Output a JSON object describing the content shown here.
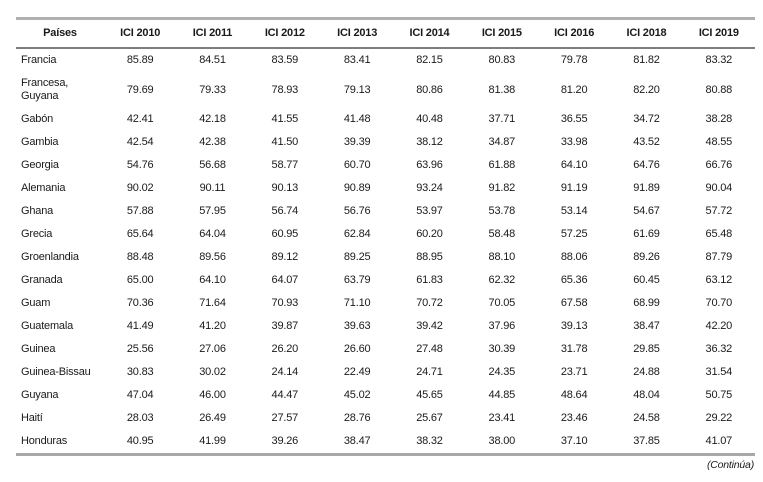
{
  "table": {
    "columns": [
      "Países",
      "ICI 2010",
      "ICI 2011",
      "ICI 2012",
      "ICI 2013",
      "ICI 2014",
      "ICI 2015",
      "ICI 2016",
      "ICI 2018",
      "ICI 2019"
    ],
    "rows": [
      {
        "name": "Francia",
        "values": [
          "85.89",
          "84.51",
          "83.59",
          "83.41",
          "82.15",
          "80.83",
          "79.78",
          "81.82",
          "83.32"
        ]
      },
      {
        "name": "Francesa, Guyana",
        "values": [
          "79.69",
          "79.33",
          "78.93",
          "79.13",
          "80.86",
          "81.38",
          "81.20",
          "82.20",
          "80.88"
        ]
      },
      {
        "name": "Gabón",
        "values": [
          "42.41",
          "42.18",
          "41.55",
          "41.48",
          "40.48",
          "37.71",
          "36.55",
          "34.72",
          "38.28"
        ]
      },
      {
        "name": "Gambia",
        "values": [
          "42.54",
          "42.38",
          "41.50",
          "39.39",
          "38.12",
          "34.87",
          "33.98",
          "43.52",
          "48.55"
        ]
      },
      {
        "name": "Georgia",
        "values": [
          "54.76",
          "56.68",
          "58.77",
          "60.70",
          "63.96",
          "61.88",
          "64.10",
          "64.76",
          "66.76"
        ]
      },
      {
        "name": "Alemania",
        "values": [
          "90.02",
          "90.11",
          "90.13",
          "90.89",
          "93.24",
          "91.82",
          "91.19",
          "91.89",
          "90.04"
        ]
      },
      {
        "name": "Ghana",
        "values": [
          "57.88",
          "57.95",
          "56.74",
          "56.76",
          "53.97",
          "53.78",
          "53.14",
          "54.67",
          "57.72"
        ]
      },
      {
        "name": "Grecia",
        "values": [
          "65.64",
          "64.04",
          "60.95",
          "62.84",
          "60.20",
          "58.48",
          "57.25",
          "61.69",
          "65.48"
        ]
      },
      {
        "name": "Groenlandia",
        "values": [
          "88.48",
          "89.56",
          "89.12",
          "89.25",
          "88.95",
          "88.10",
          "88.06",
          "89.26",
          "87.79"
        ]
      },
      {
        "name": "Granada",
        "values": [
          "65.00",
          "64.10",
          "64.07",
          "63.79",
          "61.83",
          "62.32",
          "65.36",
          "60.45",
          "63.12"
        ]
      },
      {
        "name": "Guam",
        "values": [
          "70.36",
          "71.64",
          "70.93",
          "71.10",
          "70.72",
          "70.05",
          "67.58",
          "68.99",
          "70.70"
        ]
      },
      {
        "name": "Guatemala",
        "values": [
          "41.49",
          "41.20",
          "39.87",
          "39.63",
          "39.42",
          "37.96",
          "39.13",
          "38.47",
          "42.20"
        ]
      },
      {
        "name": "Guinea",
        "values": [
          "25.56",
          "27.06",
          "26.20",
          "26.60",
          "27.48",
          "30.39",
          "31.78",
          "29.85",
          "36.32"
        ]
      },
      {
        "name": "Guinea-Bissau",
        "values": [
          "30.83",
          "30.02",
          "24.14",
          "22.49",
          "24.71",
          "24.35",
          "23.71",
          "24.88",
          "31.54"
        ]
      },
      {
        "name": "Guyana",
        "values": [
          "47.04",
          "46.00",
          "44.47",
          "45.02",
          "45.65",
          "44.85",
          "48.64",
          "48.04",
          "50.75"
        ]
      },
      {
        "name": "Haití",
        "values": [
          "28.03",
          "26.49",
          "27.57",
          "28.76",
          "25.67",
          "23.41",
          "23.46",
          "24.58",
          "29.22"
        ]
      },
      {
        "name": "Honduras",
        "values": [
          "40.95",
          "41.99",
          "39.26",
          "38.47",
          "38.32",
          "38.00",
          "37.10",
          "37.85",
          "41.07"
        ]
      }
    ]
  },
  "footer": {
    "note": "(Continúa)"
  },
  "colors": {
    "text": "#1a1a1a",
    "border_top": "#b0b0b0",
    "border_header": "#7d7d7d",
    "border_bottom": "#a8a8a8"
  }
}
